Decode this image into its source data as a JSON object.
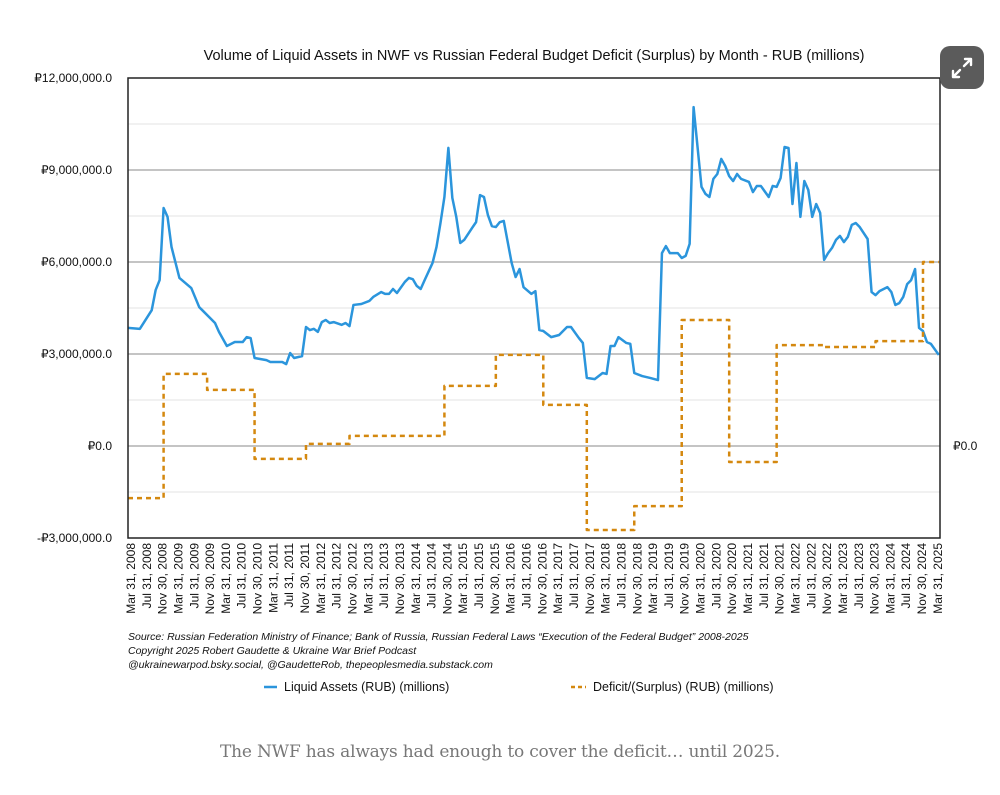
{
  "caption": "The NWF has always had enough to cover the deficit… until 2025.",
  "expand_button": {
    "icon": "expand-arrows-icon"
  },
  "chart_data": {
    "type": "line",
    "title": "Volume of Liquid Assets in NWF vs Russian Federal Budget Deficit (Surplus) by Month - RUB (millions)",
    "xlabel": "",
    "ylabel": "",
    "x_range": [
      "2008-03",
      "2025-04"
    ],
    "ylim": [
      -3000000,
      12000000
    ],
    "y_tick_labels": [
      "₽12,000,000.0",
      "₽9,000,000.0",
      "₽6,000,000.0",
      "₽3,000,000.0",
      "₽0.0",
      "-₽3,000,000.0"
    ],
    "y_tick_values": [
      12000000,
      9000000,
      6000000,
      3000000,
      0,
      -3000000
    ],
    "y_minor_grid_values": [
      10500000,
      7500000,
      4500000,
      1500000,
      -1500000
    ],
    "right_axis_label": "₽0.0",
    "grid": true,
    "x_tick_labels": [
      "Mar 31, 2008",
      "Jul 31, 2008",
      "Nov 30, 2008",
      "Mar 31, 2009",
      "Jul 31, 2009",
      "Nov 30, 2009",
      "Mar 31, 2010",
      "Jul 31, 2010",
      "Nov 30, 2010",
      "Mar 31, 2011",
      "Jul 31, 2011",
      "Nov 30, 2011",
      "Mar 31, 2012",
      "Jul 31, 2012",
      "Nov 30, 2012",
      "Mar 31, 2013",
      "Jul 31, 2013",
      "Nov 30, 2013",
      "Mar 31, 2014",
      "Jul 31, 2014",
      "Nov 30, 2014",
      "Mar 31, 2015",
      "Jul 31, 2015",
      "Nov 30, 2015",
      "Mar 31, 2016",
      "Jul 31, 2016",
      "Nov 30, 2016",
      "Mar 31, 2017",
      "Jul 31, 2017",
      "Nov 30, 2017",
      "Mar 31, 2018",
      "Jul 31, 2018",
      "Nov 30, 2018",
      "Mar 31, 2019",
      "Jul 31, 2019",
      "Nov 30, 2019",
      "Mar 31, 2020",
      "Jul 31, 2020",
      "Nov 30, 2020",
      "Mar 31, 2021",
      "Jul 31, 2021",
      "Nov 30, 2021",
      "Mar 31, 2022",
      "Jul 31, 2022",
      "Nov 30, 2022",
      "Mar 31, 2023",
      "Jul 31, 2023",
      "Nov 30, 2023",
      "Mar 31, 2024",
      "Jul 31, 2024",
      "Nov 30, 2024",
      "Mar 31, 2025"
    ],
    "legend_placement": "bottom",
    "series": [
      {
        "name": "Liquid Assets (RUB) (millions)",
        "color": "#2b95dc",
        "style": "solid",
        "points": [
          [
            "2008-03",
            3850000
          ],
          [
            "2008-06",
            3820000
          ],
          [
            "2008-09",
            4430000
          ],
          [
            "2008-10",
            5090000
          ],
          [
            "2008-11",
            5410000
          ],
          [
            "2008-12",
            7760000
          ],
          [
            "2009-01",
            7470000
          ],
          [
            "2009-02",
            6490000
          ],
          [
            "2009-04",
            5480000
          ],
          [
            "2009-07",
            5150000
          ],
          [
            "2009-09",
            4530000
          ],
          [
            "2009-10",
            4400000
          ],
          [
            "2009-12",
            4140000
          ],
          [
            "2010-01",
            4010000
          ],
          [
            "2010-02",
            3720000
          ],
          [
            "2010-04",
            3260000
          ],
          [
            "2010-06",
            3390000
          ],
          [
            "2010-08",
            3390000
          ],
          [
            "2010-09",
            3550000
          ],
          [
            "2010-10",
            3520000
          ],
          [
            "2010-11",
            2870000
          ],
          [
            "2011-02",
            2800000
          ],
          [
            "2011-03",
            2740000
          ],
          [
            "2011-06",
            2740000
          ],
          [
            "2011-07",
            2670000
          ],
          [
            "2011-08",
            3030000
          ],
          [
            "2011-09",
            2870000
          ],
          [
            "2011-11",
            2930000
          ],
          [
            "2011-12",
            3880000
          ],
          [
            "2012-01",
            3780000
          ],
          [
            "2012-02",
            3820000
          ],
          [
            "2012-03",
            3720000
          ],
          [
            "2012-04",
            4040000
          ],
          [
            "2012-05",
            4110000
          ],
          [
            "2012-06",
            4010000
          ],
          [
            "2012-07",
            4040000
          ],
          [
            "2012-09",
            3950000
          ],
          [
            "2012-10",
            4010000
          ],
          [
            "2012-11",
            3910000
          ],
          [
            "2012-12",
            4600000
          ],
          [
            "2013-02",
            4630000
          ],
          [
            "2013-04",
            4730000
          ],
          [
            "2013-05",
            4860000
          ],
          [
            "2013-07",
            5020000
          ],
          [
            "2013-08",
            4960000
          ],
          [
            "2013-09",
            4960000
          ],
          [
            "2013-10",
            5120000
          ],
          [
            "2013-11",
            4990000
          ],
          [
            "2014-01",
            5350000
          ],
          [
            "2014-02",
            5480000
          ],
          [
            "2014-03",
            5440000
          ],
          [
            "2014-04",
            5220000
          ],
          [
            "2014-05",
            5120000
          ],
          [
            "2014-06",
            5410000
          ],
          [
            "2014-08",
            5970000
          ],
          [
            "2014-09",
            6490000
          ],
          [
            "2014-10",
            7270000
          ],
          [
            "2014-11",
            8120000
          ],
          [
            "2014-12",
            9720000
          ],
          [
            "2015-01",
            8090000
          ],
          [
            "2015-02",
            7470000
          ],
          [
            "2015-03",
            6620000
          ],
          [
            "2015-04",
            6720000
          ],
          [
            "2015-06",
            7110000
          ],
          [
            "2015-07",
            7300000
          ],
          [
            "2015-08",
            8180000
          ],
          [
            "2015-09",
            8120000
          ],
          [
            "2015-10",
            7530000
          ],
          [
            "2015-11",
            7170000
          ],
          [
            "2015-12",
            7140000
          ],
          [
            "2016-01",
            7300000
          ],
          [
            "2016-02",
            7340000
          ],
          [
            "2016-04",
            5970000
          ],
          [
            "2016-05",
            5510000
          ],
          [
            "2016-06",
            5770000
          ],
          [
            "2016-07",
            5180000
          ],
          [
            "2016-09",
            4960000
          ],
          [
            "2016-10",
            5050000
          ],
          [
            "2016-11",
            3780000
          ],
          [
            "2016-12",
            3750000
          ],
          [
            "2017-02",
            3550000
          ],
          [
            "2017-04",
            3620000
          ],
          [
            "2017-06",
            3880000
          ],
          [
            "2017-07",
            3880000
          ],
          [
            "2017-09",
            3520000
          ],
          [
            "2017-10",
            3360000
          ],
          [
            "2017-11",
            2220000
          ],
          [
            "2018-01",
            2180000
          ],
          [
            "2018-03",
            2380000
          ],
          [
            "2018-04",
            2350000
          ],
          [
            "2018-05",
            3260000
          ],
          [
            "2018-06",
            3260000
          ],
          [
            "2018-07",
            3550000
          ],
          [
            "2018-09",
            3360000
          ],
          [
            "2018-10",
            3330000
          ],
          [
            "2018-11",
            2380000
          ],
          [
            "2019-01",
            2280000
          ],
          [
            "2019-03",
            2220000
          ],
          [
            "2019-05",
            2150000
          ],
          [
            "2019-06",
            6290000
          ],
          [
            "2019-07",
            6520000
          ],
          [
            "2019-08",
            6290000
          ],
          [
            "2019-10",
            6290000
          ],
          [
            "2019-11",
            6130000
          ],
          [
            "2019-12",
            6200000
          ],
          [
            "2020-01",
            6590000
          ],
          [
            "2020-02",
            11050000
          ],
          [
            "2020-04",
            8450000
          ],
          [
            "2020-05",
            8220000
          ],
          [
            "2020-06",
            8120000
          ],
          [
            "2020-07",
            8710000
          ],
          [
            "2020-08",
            8870000
          ],
          [
            "2020-09",
            9360000
          ],
          [
            "2020-10",
            9130000
          ],
          [
            "2020-11",
            8800000
          ],
          [
            "2020-12",
            8640000
          ],
          [
            "2021-01",
            8870000
          ],
          [
            "2021-02",
            8710000
          ],
          [
            "2021-04",
            8610000
          ],
          [
            "2021-05",
            8280000
          ],
          [
            "2021-06",
            8480000
          ],
          [
            "2021-07",
            8480000
          ],
          [
            "2021-09",
            8120000
          ],
          [
            "2021-10",
            8480000
          ],
          [
            "2021-11",
            8450000
          ],
          [
            "2021-12",
            8740000
          ],
          [
            "2022-01",
            9750000
          ],
          [
            "2022-02",
            9720000
          ],
          [
            "2022-03",
            7890000
          ],
          [
            "2022-04",
            9230000
          ],
          [
            "2022-05",
            7470000
          ],
          [
            "2022-06",
            8640000
          ],
          [
            "2022-07",
            8350000
          ],
          [
            "2022-08",
            7470000
          ],
          [
            "2022-09",
            7890000
          ],
          [
            "2022-10",
            7600000
          ],
          [
            "2022-11",
            6070000
          ],
          [
            "2022-12",
            6290000
          ],
          [
            "2023-01",
            6460000
          ],
          [
            "2023-02",
            6720000
          ],
          [
            "2023-03",
            6850000
          ],
          [
            "2023-04",
            6650000
          ],
          [
            "2023-05",
            6820000
          ],
          [
            "2023-06",
            7210000
          ],
          [
            "2023-07",
            7270000
          ],
          [
            "2023-08",
            7140000
          ],
          [
            "2023-10",
            6750000
          ],
          [
            "2023-11",
            5020000
          ],
          [
            "2023-12",
            4920000
          ],
          [
            "2024-01",
            5050000
          ],
          [
            "2024-03",
            5180000
          ],
          [
            "2024-04",
            5020000
          ],
          [
            "2024-05",
            4600000
          ],
          [
            "2024-06",
            4660000
          ],
          [
            "2024-07",
            4860000
          ],
          [
            "2024-08",
            5280000
          ],
          [
            "2024-09",
            5410000
          ],
          [
            "2024-10",
            5770000
          ],
          [
            "2024-11",
            3850000
          ],
          [
            "2024-12",
            3750000
          ],
          [
            "2025-01",
            3390000
          ],
          [
            "2025-02",
            3330000
          ],
          [
            "2025-04",
            2970000
          ]
        ]
      },
      {
        "name": "Deficit/(Surplus) (RUB) (millions)",
        "color": "#d4880f",
        "style": "dashed-step",
        "points": [
          [
            "2008-03",
            -1700000
          ],
          [
            "2008-12",
            2350000
          ],
          [
            "2009-11",
            1830000
          ],
          [
            "2010-11",
            -420000
          ],
          [
            "2011-12",
            70000
          ],
          [
            "2012-11",
            330000
          ],
          [
            "2014-11",
            1960000
          ],
          [
            "2015-12",
            2970000
          ],
          [
            "2016-12",
            1340000
          ],
          [
            "2017-11",
            -2740000
          ],
          [
            "2018-11",
            -1960000
          ],
          [
            "2019-11",
            4110000
          ],
          [
            "2020-11",
            -520000
          ],
          [
            "2021-11",
            3290000
          ],
          [
            "2022-11",
            3230000
          ],
          [
            "2023-12",
            3420000
          ],
          [
            "2024-12",
            6000000
          ],
          [
            "2025-04",
            6000000
          ]
        ]
      }
    ],
    "source_lines": [
      "Source: Russian Federation Ministry of Finance; Bank of Russia, Russian Federal Laws “Execution of the Federal Budget” 2008-2025",
      "Copyright 2025 Robert Gaudette & Ukraine War Brief Podcast",
      "@ukrainewarpod.bsky.social, @GaudetteRob, thepeoplesmedia.substack.com"
    ]
  }
}
